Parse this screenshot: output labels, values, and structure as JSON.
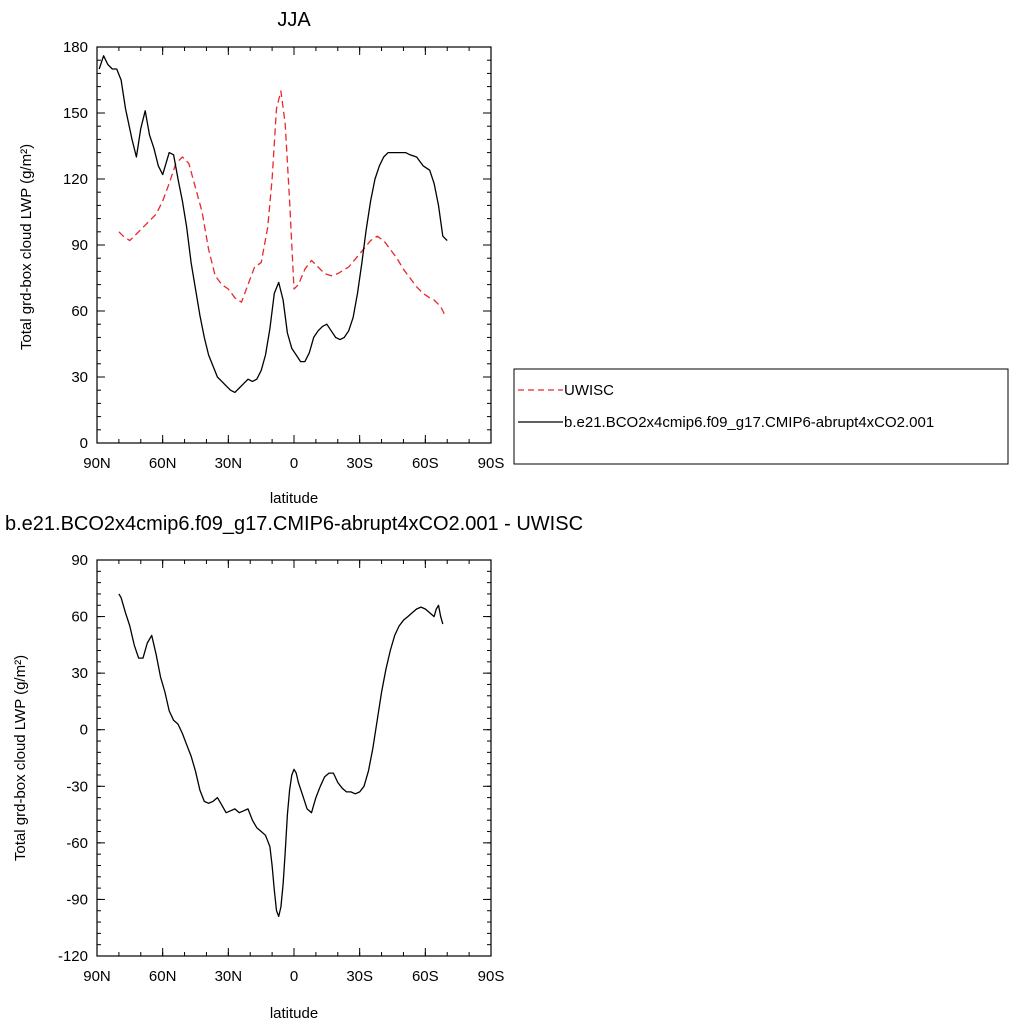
{
  "chart_data": [
    {
      "type": "line",
      "title": "JJA",
      "xlabel": "latitude",
      "ylabel": "Total grd-box cloud LWP (g/m²)",
      "x_ticks": [
        "90N",
        "60N",
        "30N",
        "0",
        "30S",
        "60S",
        "90S"
      ],
      "x_range": [
        90,
        -90
      ],
      "ylim": [
        0,
        180
      ],
      "y_ticks": [
        "0",
        "30",
        "60",
        "90",
        "120",
        "150",
        "180"
      ],
      "legend_position": "right",
      "series": [
        {
          "name": "UWISC",
          "color": "#e8282d",
          "dash": "dashed",
          "x": [
            80,
            78,
            75,
            72,
            69,
            66,
            63,
            60,
            57,
            54,
            51,
            48,
            45,
            42,
            39,
            36,
            33,
            30,
            27,
            24,
            21,
            18,
            15,
            12,
            10,
            8,
            6,
            4,
            2,
            0,
            -2,
            -5,
            -8,
            -11,
            -14,
            -17,
            -20,
            -25,
            -30,
            -35,
            -38,
            -41,
            -44,
            -47,
            -50,
            -53,
            -56,
            -59,
            -62,
            -64,
            -67,
            -69
          ],
          "y": [
            96,
            94,
            92,
            95,
            98,
            101,
            104,
            110,
            118,
            127,
            130,
            127,
            116,
            105,
            88,
            76,
            72,
            70,
            66,
            64,
            72,
            80,
            82,
            98,
            120,
            152,
            160,
            145,
            110,
            70,
            72,
            79,
            83,
            80,
            77,
            76,
            77,
            80,
            86,
            92,
            94,
            92,
            88,
            84,
            79,
            75,
            71,
            68,
            66,
            65,
            62,
            58
          ]
        },
        {
          "name": "b.e21.BCO2x4cmip6.f09_g17.CMIP6-abrupt4xCO2.001",
          "color": "#000000",
          "dash": "solid",
          "x": [
            89,
            87,
            85,
            83,
            81,
            79,
            77,
            74,
            72,
            70,
            68,
            66,
            64,
            62,
            60,
            57,
            55,
            53,
            51,
            49,
            47,
            45,
            43,
            41,
            39,
            37,
            35,
            33,
            31,
            29,
            27,
            25,
            23,
            21,
            19,
            17,
            15,
            13,
            11,
            9,
            7,
            5,
            3,
            1,
            -1,
            -3,
            -5,
            -7,
            -9,
            -11,
            -13,
            -15,
            -17,
            -19,
            -21,
            -23,
            -25,
            -27,
            -29,
            -31,
            -33,
            -35,
            -37,
            -39,
            -41,
            -43,
            -45,
            -47,
            -49,
            -51,
            -53,
            -56,
            -59,
            -62,
            -64,
            -66,
            -68,
            -70
          ],
          "y": [
            170,
            176,
            172,
            170,
            170,
            165,
            152,
            138,
            130,
            143,
            151,
            140,
            134,
            126,
            122,
            132,
            131,
            120,
            110,
            98,
            82,
            70,
            58,
            48,
            40,
            35,
            30,
            28,
            26,
            24,
            23,
            25,
            27,
            29,
            28,
            29,
            33,
            40,
            52,
            68,
            73,
            65,
            50,
            43,
            40,
            37,
            37,
            41,
            48,
            51,
            53,
            54,
            51,
            48,
            47,
            48,
            51,
            57,
            68,
            82,
            97,
            110,
            120,
            126,
            130,
            132,
            132,
            132,
            132,
            132,
            131,
            130,
            126,
            124,
            118,
            108,
            94,
            92
          ]
        }
      ]
    },
    {
      "type": "line",
      "title": "b.e21.BCO2x4cmip6.f09_g17.CMIP6-abrupt4xCO2.001 - UWISC",
      "xlabel": "latitude",
      "ylabel": "Total grd-box cloud LWP (g/m²)",
      "x_ticks": [
        "90N",
        "60N",
        "30N",
        "0",
        "30S",
        "60S",
        "90S"
      ],
      "x_range": [
        90,
        -90
      ],
      "ylim": [
        -120,
        90
      ],
      "y_ticks": [
        "-120",
        "-90",
        "-60",
        "-30",
        "0",
        "30",
        "60",
        "90"
      ],
      "series": [
        {
          "color": "#000000",
          "dash": "solid",
          "x": [
            80,
            79,
            77,
            75,
            73,
            71,
            69,
            67,
            65,
            63,
            61,
            59,
            57,
            55,
            53,
            51,
            49,
            47,
            45,
            43,
            41,
            39,
            37,
            35,
            33,
            31,
            29,
            27,
            25,
            23,
            21,
            19,
            17,
            15,
            13,
            11,
            10,
            9,
            8,
            7,
            6,
            5,
            4,
            3,
            2,
            1,
            0,
            -1,
            -2,
            -4,
            -6,
            -8,
            -10,
            -12,
            -14,
            -16,
            -18,
            -20,
            -22,
            -24,
            -26,
            -28,
            -30,
            -32,
            -34,
            -36,
            -38,
            -40,
            -42,
            -44,
            -46,
            -48,
            -50,
            -52,
            -54,
            -56,
            -58,
            -60,
            -62,
            -64,
            -65,
            -66,
            -67,
            -68
          ],
          "y": [
            72,
            70,
            62,
            55,
            45,
            38,
            38,
            46,
            50,
            40,
            28,
            20,
            10,
            5,
            3,
            -2,
            -8,
            -14,
            -22,
            -32,
            -38,
            -39,
            -38,
            -36,
            -40,
            -44,
            -43,
            -42,
            -44,
            -43,
            -42,
            -48,
            -52,
            -54,
            -56,
            -62,
            -72,
            -85,
            -96,
            -99,
            -94,
            -82,
            -65,
            -45,
            -32,
            -24,
            -21,
            -23,
            -28,
            -35,
            -42,
            -44,
            -36,
            -30,
            -25,
            -23,
            -23,
            -28,
            -31,
            -33,
            -33,
            -34,
            -33,
            -30,
            -22,
            -10,
            5,
            20,
            32,
            42,
            50,
            55,
            58,
            60,
            62,
            64,
            65,
            64,
            62,
            60,
            64,
            66,
            60,
            56
          ]
        }
      ]
    }
  ]
}
